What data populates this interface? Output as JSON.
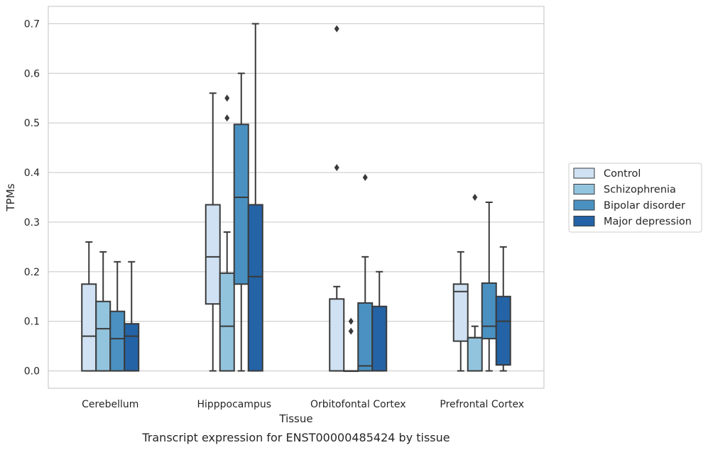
{
  "chart_data": {
    "type": "box",
    "xlabel": "Tissue",
    "ylabel": "TPMs",
    "caption": "Transcript expression for ENST00000485424 by tissue",
    "ylim": [
      -0.035,
      0.735
    ],
    "yticks": [
      "0.0",
      "0.1",
      "0.2",
      "0.3",
      "0.4",
      "0.5",
      "0.6",
      "0.7"
    ],
    "ytick_values": [
      0.0,
      0.1,
      0.2,
      0.3,
      0.4,
      0.5,
      0.6,
      0.7
    ],
    "grid": "horizontal",
    "legend_position": "right",
    "categories": [
      "Cerebellum",
      "Hipppocampus",
      "Orbitofontal Cortex",
      "Prefrontal Cortex"
    ],
    "series": [
      {
        "name": "Control",
        "color": "#cfe1f2",
        "boxes": [
          {
            "whislo": 0.0,
            "q1": 0.0,
            "med": 0.07,
            "q3": 0.175,
            "whishi": 0.26,
            "fliers": []
          },
          {
            "whislo": 0.0,
            "q1": 0.135,
            "med": 0.23,
            "q3": 0.335,
            "whishi": 0.56,
            "fliers": []
          },
          {
            "whislo": 0.0,
            "q1": 0.0,
            "med": 0.0,
            "q3": 0.145,
            "whishi": 0.17,
            "fliers": [
              0.41,
              0.69
            ]
          },
          {
            "whislo": 0.0,
            "q1": 0.06,
            "med": 0.16,
            "q3": 0.175,
            "whishi": 0.24,
            "fliers": []
          }
        ]
      },
      {
        "name": "Schizophrenia",
        "color": "#93c4de",
        "boxes": [
          {
            "whislo": 0.0,
            "q1": 0.0,
            "med": 0.085,
            "q3": 0.14,
            "whishi": 0.24,
            "fliers": []
          },
          {
            "whislo": 0.0,
            "q1": 0.0,
            "med": 0.09,
            "q3": 0.197,
            "whishi": 0.28,
            "fliers": [
              0.51,
              0.55
            ]
          },
          {
            "whislo": 0.0,
            "q1": 0.0,
            "med": 0.0,
            "q3": 0.0,
            "whishi": 0.0,
            "fliers": [
              0.08,
              0.1
            ]
          },
          {
            "whislo": 0.0,
            "q1": 0.0,
            "med": 0.067,
            "q3": 0.067,
            "whishi": 0.09,
            "fliers": [
              0.35
            ]
          }
        ]
      },
      {
        "name": "Bipolar disorder",
        "color": "#4a91c2",
        "boxes": [
          {
            "whislo": 0.0,
            "q1": 0.0,
            "med": 0.065,
            "q3": 0.12,
            "whishi": 0.22,
            "fliers": []
          },
          {
            "whislo": 0.0,
            "q1": 0.175,
            "med": 0.35,
            "q3": 0.497,
            "whishi": 0.6,
            "fliers": []
          },
          {
            "whislo": 0.0,
            "q1": 0.0,
            "med": 0.01,
            "q3": 0.137,
            "whishi": 0.23,
            "fliers": [
              0.39
            ]
          },
          {
            "whislo": 0.0,
            "q1": 0.065,
            "med": 0.09,
            "q3": 0.177,
            "whishi": 0.34,
            "fliers": []
          }
        ]
      },
      {
        "name": "Major depression",
        "color": "#2463a5",
        "boxes": [
          {
            "whislo": 0.0,
            "q1": 0.0,
            "med": 0.07,
            "q3": 0.095,
            "whishi": 0.22,
            "fliers": []
          },
          {
            "whislo": 0.0,
            "q1": 0.0,
            "med": 0.19,
            "q3": 0.335,
            "whishi": 0.7,
            "fliers": []
          },
          {
            "whislo": 0.0,
            "q1": 0.0,
            "med": 0.0,
            "q3": 0.13,
            "whishi": 0.2,
            "fliers": []
          },
          {
            "whislo": 0.0,
            "q1": 0.012,
            "med": 0.1,
            "q3": 0.15,
            "whishi": 0.25,
            "fliers": []
          }
        ]
      }
    ]
  }
}
